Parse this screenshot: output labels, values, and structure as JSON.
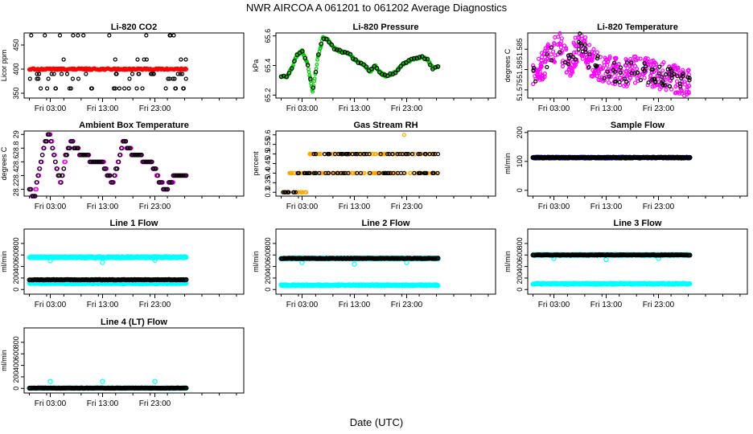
{
  "page_title": "NWR   AIRCOA A   061201 to 061202   Average Diagnostics",
  "x_axis_label": "Date (UTC)",
  "x_ticks": [
    "Fri 03:00",
    "Fri 13:00",
    "Fri 23:00"
  ],
  "colors": {
    "black": "#000000",
    "red": "#ff0000",
    "green": "#00cc00",
    "magenta": "#ff00ff",
    "orange": "#ffa500",
    "blue": "#0000ff",
    "cyan": "#00ffff"
  },
  "chart_data": [
    {
      "id": "co2",
      "title": "Li-820 CO2",
      "type": "scatter",
      "ylabel": "Licor ppm",
      "ylim": [
        340,
        475
      ],
      "yticks": [
        350,
        400,
        450
      ],
      "xlim": [
        -2,
        40
      ],
      "xticks_at": [
        3,
        13,
        23
      ],
      "series": [
        {
          "name": "black",
          "color": "black",
          "pattern": "scatter-levels",
          "levels": [
            360,
            380,
            390,
            420,
            470
          ],
          "weights": [
            0.25,
            0.2,
            0.2,
            0.2,
            0.15
          ],
          "n": 70
        },
        {
          "name": "red",
          "color": "red",
          "pattern": "band",
          "center": 400,
          "spread": 3,
          "n": 220
        }
      ]
    },
    {
      "id": "pressure",
      "title": "Li-820 Pressure",
      "type": "line",
      "ylabel": "kPa",
      "ylim": [
        65.18,
        65.62
      ],
      "yticks": [
        65.2,
        65.4,
        65.6
      ],
      "xlim": [
        -2,
        40
      ],
      "xticks_at": [
        3,
        13,
        23
      ],
      "series": [
        {
          "name": "green",
          "color": "green",
          "pattern": "curve",
          "x": [
            -1,
            0,
            1,
            2,
            3,
            4,
            5,
            6,
            7,
            8,
            9,
            10,
            11,
            12,
            13,
            14,
            15,
            16,
            17,
            18,
            19,
            20,
            21,
            22,
            23,
            24,
            25,
            26,
            27,
            28,
            29
          ],
          "y": [
            65.33,
            65.32,
            65.38,
            65.47,
            65.5,
            65.42,
            65.22,
            65.45,
            65.59,
            65.57,
            65.52,
            65.5,
            65.49,
            65.48,
            65.44,
            65.42,
            65.4,
            65.36,
            65.4,
            65.35,
            65.33,
            65.34,
            65.36,
            65.4,
            65.42,
            65.44,
            65.45,
            65.46,
            65.44,
            65.38,
            65.39
          ],
          "n": 300
        },
        {
          "name": "black",
          "color": "black",
          "pattern": "curve-sparse",
          "x": [
            -1,
            0,
            1,
            2,
            3,
            4,
            5,
            6,
            7,
            8,
            9,
            10,
            11,
            12,
            13,
            14,
            15,
            16,
            17,
            18,
            19,
            20,
            21,
            22,
            23,
            24,
            25,
            26,
            27,
            28,
            29
          ],
          "y": [
            65.33,
            65.32,
            65.38,
            65.47,
            65.5,
            65.42,
            65.22,
            65.45,
            65.59,
            65.57,
            65.52,
            65.5,
            65.49,
            65.48,
            65.44,
            65.42,
            65.4,
            65.36,
            65.4,
            65.35,
            65.33,
            65.34,
            65.36,
            65.4,
            65.42,
            65.44,
            65.45,
            65.46,
            65.44,
            65.38,
            65.39
          ],
          "n": 60
        }
      ]
    },
    {
      "id": "li820temp",
      "title": "Li-820 Temperature",
      "type": "scatter",
      "ylabel": "degrees C",
      "ylim": [
        51.573,
        51.589
      ],
      "yticks": [
        51.575,
        51.58,
        51.585
      ],
      "xlim": [
        -2,
        40
      ],
      "xticks_at": [
        3,
        13,
        23
      ],
      "series": [
        {
          "name": "magenta",
          "color": "magenta",
          "pattern": "noisy-curve",
          "x": [
            -1,
            2,
            4,
            6,
            8,
            10,
            13,
            16,
            19,
            22,
            25,
            28,
            29
          ],
          "y": [
            51.578,
            51.583,
            51.586,
            51.581,
            51.587,
            51.582,
            51.58,
            51.579,
            51.58,
            51.579,
            51.578,
            51.577,
            51.577
          ],
          "spread": 0.0035,
          "n": 420
        },
        {
          "name": "black",
          "color": "black",
          "pattern": "noisy-curve",
          "x": [
            -1,
            2,
            4,
            6,
            8,
            10,
            13,
            16,
            19,
            22,
            25,
            28,
            29
          ],
          "y": [
            51.578,
            51.583,
            51.586,
            51.581,
            51.587,
            51.582,
            51.58,
            51.579,
            51.58,
            51.579,
            51.578,
            51.577,
            51.577
          ],
          "spread": 0.0025,
          "n": 90
        }
      ]
    },
    {
      "id": "ambient",
      "title": "Ambient Box Temperature",
      "type": "scatter",
      "ylabel": "degrees C",
      "ylim": [
        28.1,
        29.05
      ],
      "yticks": [
        28.2,
        28.4,
        28.6,
        28.8,
        29.0
      ],
      "xlim": [
        -2,
        40
      ],
      "xticks_at": [
        3,
        13,
        23
      ],
      "series": [
        {
          "name": "magenta",
          "color": "magenta",
          "pattern": "steps",
          "x": [
            -1,
            0,
            1,
            2,
            3,
            4,
            5,
            6,
            7,
            8,
            9,
            10,
            11,
            12,
            13,
            14,
            15,
            16,
            17,
            18,
            19,
            20,
            21,
            22,
            23,
            24,
            25,
            26,
            27,
            28,
            29
          ],
          "y": [
            28.2,
            28.1,
            28.5,
            28.9,
            29.0,
            28.6,
            28.3,
            28.7,
            28.9,
            28.8,
            28.7,
            28.7,
            28.6,
            28.6,
            28.6,
            28.4,
            28.3,
            28.6,
            28.9,
            28.8,
            28.7,
            28.7,
            28.6,
            28.6,
            28.5,
            28.3,
            28.2,
            28.3,
            28.4,
            28.4,
            28.4
          ],
          "n": 180
        },
        {
          "name": "black",
          "color": "black",
          "pattern": "steps-sparse",
          "x": [
            -1,
            0,
            1,
            2,
            3,
            4,
            5,
            6,
            7,
            8,
            9,
            10,
            11,
            12,
            13,
            14,
            15,
            16,
            17,
            18,
            19,
            20,
            21,
            22,
            23,
            24,
            25,
            26,
            27,
            28,
            29
          ],
          "y": [
            28.2,
            28.1,
            28.5,
            28.9,
            29.0,
            28.6,
            28.3,
            28.7,
            28.9,
            28.8,
            28.7,
            28.7,
            28.6,
            28.6,
            28.6,
            28.4,
            28.3,
            28.6,
            28.9,
            28.8,
            28.7,
            28.7,
            28.6,
            28.6,
            28.5,
            28.3,
            28.2,
            28.3,
            28.4,
            28.4,
            28.4
          ],
          "n": 110
        }
      ]
    },
    {
      "id": "rh",
      "title": "Gas Stream RH",
      "type": "scatter",
      "ylabel": "percent",
      "ylim": [
        0.28,
        0.62
      ],
      "yticks": [
        0.3,
        0.35,
        0.4,
        0.45,
        0.5,
        0.55,
        0.6
      ],
      "xlim": [
        -2,
        40
      ],
      "xticks_at": [
        3,
        13,
        23
      ],
      "series": [
        {
          "name": "orange",
          "color": "orange",
          "pattern": "rh-levels",
          "n": 260
        },
        {
          "name": "black",
          "color": "black",
          "pattern": "rh-levels-sparse",
          "n": 110
        }
      ]
    },
    {
      "id": "sampleflow",
      "title": "Sample Flow",
      "type": "scatter",
      "ylabel": "ml/min",
      "ylim": [
        -20,
        205
      ],
      "yticks": [
        0,
        100,
        200
      ],
      "xlim": [
        -2,
        40
      ],
      "xticks_at": [
        3,
        13,
        23
      ],
      "series": [
        {
          "name": "blue",
          "color": "blue",
          "pattern": "flat",
          "y": 113,
          "spread": 1.5,
          "n": 300
        },
        {
          "name": "black",
          "color": "black",
          "pattern": "flat",
          "y": 113,
          "spread": 1.5,
          "n": 150
        }
      ]
    },
    {
      "id": "line1",
      "title": "Line 1 Flow",
      "type": "scatter",
      "ylabel": "ml/min",
      "ylim": [
        -80,
        1050
      ],
      "yticks": [
        0,
        200,
        400,
        600,
        800
      ],
      "xlim": [
        -2,
        40
      ],
      "xticks_at": [
        3,
        13,
        23
      ],
      "series": [
        {
          "name": "cyan-high",
          "color": "cyan",
          "pattern": "flat",
          "y": 560,
          "spread": 12,
          "n": 320,
          "outliers": [
            [
              3,
              500
            ],
            [
              13,
              470
            ],
            [
              23,
              510
            ]
          ]
        },
        {
          "name": "cyan-low",
          "color": "cyan",
          "pattern": "flat",
          "y": 110,
          "spread": 10,
          "n": 320
        },
        {
          "name": "black",
          "color": "black",
          "pattern": "flat",
          "y": 170,
          "spread": 4,
          "n": 150
        }
      ]
    },
    {
      "id": "line2",
      "title": "Line 2 Flow",
      "type": "scatter",
      "ylabel": "ml/min",
      "ylim": [
        -80,
        1050
      ],
      "yticks": [
        0,
        200,
        400,
        600,
        800
      ],
      "xlim": [
        -2,
        40
      ],
      "xticks_at": [
        3,
        13,
        23
      ],
      "series": [
        {
          "name": "cyan-high",
          "color": "cyan",
          "pattern": "flat",
          "y": 540,
          "spread": 10,
          "n": 320,
          "outliers": [
            [
              3,
              470
            ],
            [
              13,
              440
            ],
            [
              23,
              470
            ]
          ]
        },
        {
          "name": "cyan-low",
          "color": "cyan",
          "pattern": "flat",
          "y": 75,
          "spread": 10,
          "n": 320
        },
        {
          "name": "black",
          "color": "black",
          "pattern": "flat",
          "y": 540,
          "spread": 4,
          "n": 150
        }
      ]
    },
    {
      "id": "line3",
      "title": "Line 3 Flow",
      "type": "scatter",
      "ylabel": "ml/min",
      "ylim": [
        -80,
        1050
      ],
      "yticks": [
        0,
        200,
        400,
        600,
        800
      ],
      "xlim": [
        -2,
        40
      ],
      "xticks_at": [
        3,
        13,
        23
      ],
      "series": [
        {
          "name": "cyan-high",
          "color": "cyan",
          "pattern": "flat",
          "y": 600,
          "spread": 10,
          "n": 320,
          "outliers": [
            [
              3,
              540
            ],
            [
              13,
              520
            ],
            [
              23,
              540
            ]
          ]
        },
        {
          "name": "cyan-low",
          "color": "cyan",
          "pattern": "flat",
          "y": 100,
          "spread": 10,
          "n": 320
        },
        {
          "name": "black",
          "color": "black",
          "pattern": "flat",
          "y": 600,
          "spread": 4,
          "n": 150
        }
      ]
    },
    {
      "id": "line4",
      "title": "Line 4 (LT) Flow",
      "type": "scatter",
      "ylabel": "ml/min",
      "ylim": [
        -80,
        1050
      ],
      "yticks": [
        0,
        200,
        400,
        600,
        800
      ],
      "xlim": [
        -2,
        40
      ],
      "xticks_at": [
        3,
        13,
        23
      ],
      "series": [
        {
          "name": "cyan",
          "color": "cyan",
          "pattern": "flat",
          "y": 5,
          "spread": 5,
          "n": 320,
          "outliers": [
            [
              3,
              120
            ],
            [
              13,
              120
            ],
            [
              23,
              120
            ]
          ]
        },
        {
          "name": "black",
          "color": "black",
          "pattern": "flat",
          "y": 5,
          "spread": 3,
          "n": 150
        }
      ]
    }
  ]
}
